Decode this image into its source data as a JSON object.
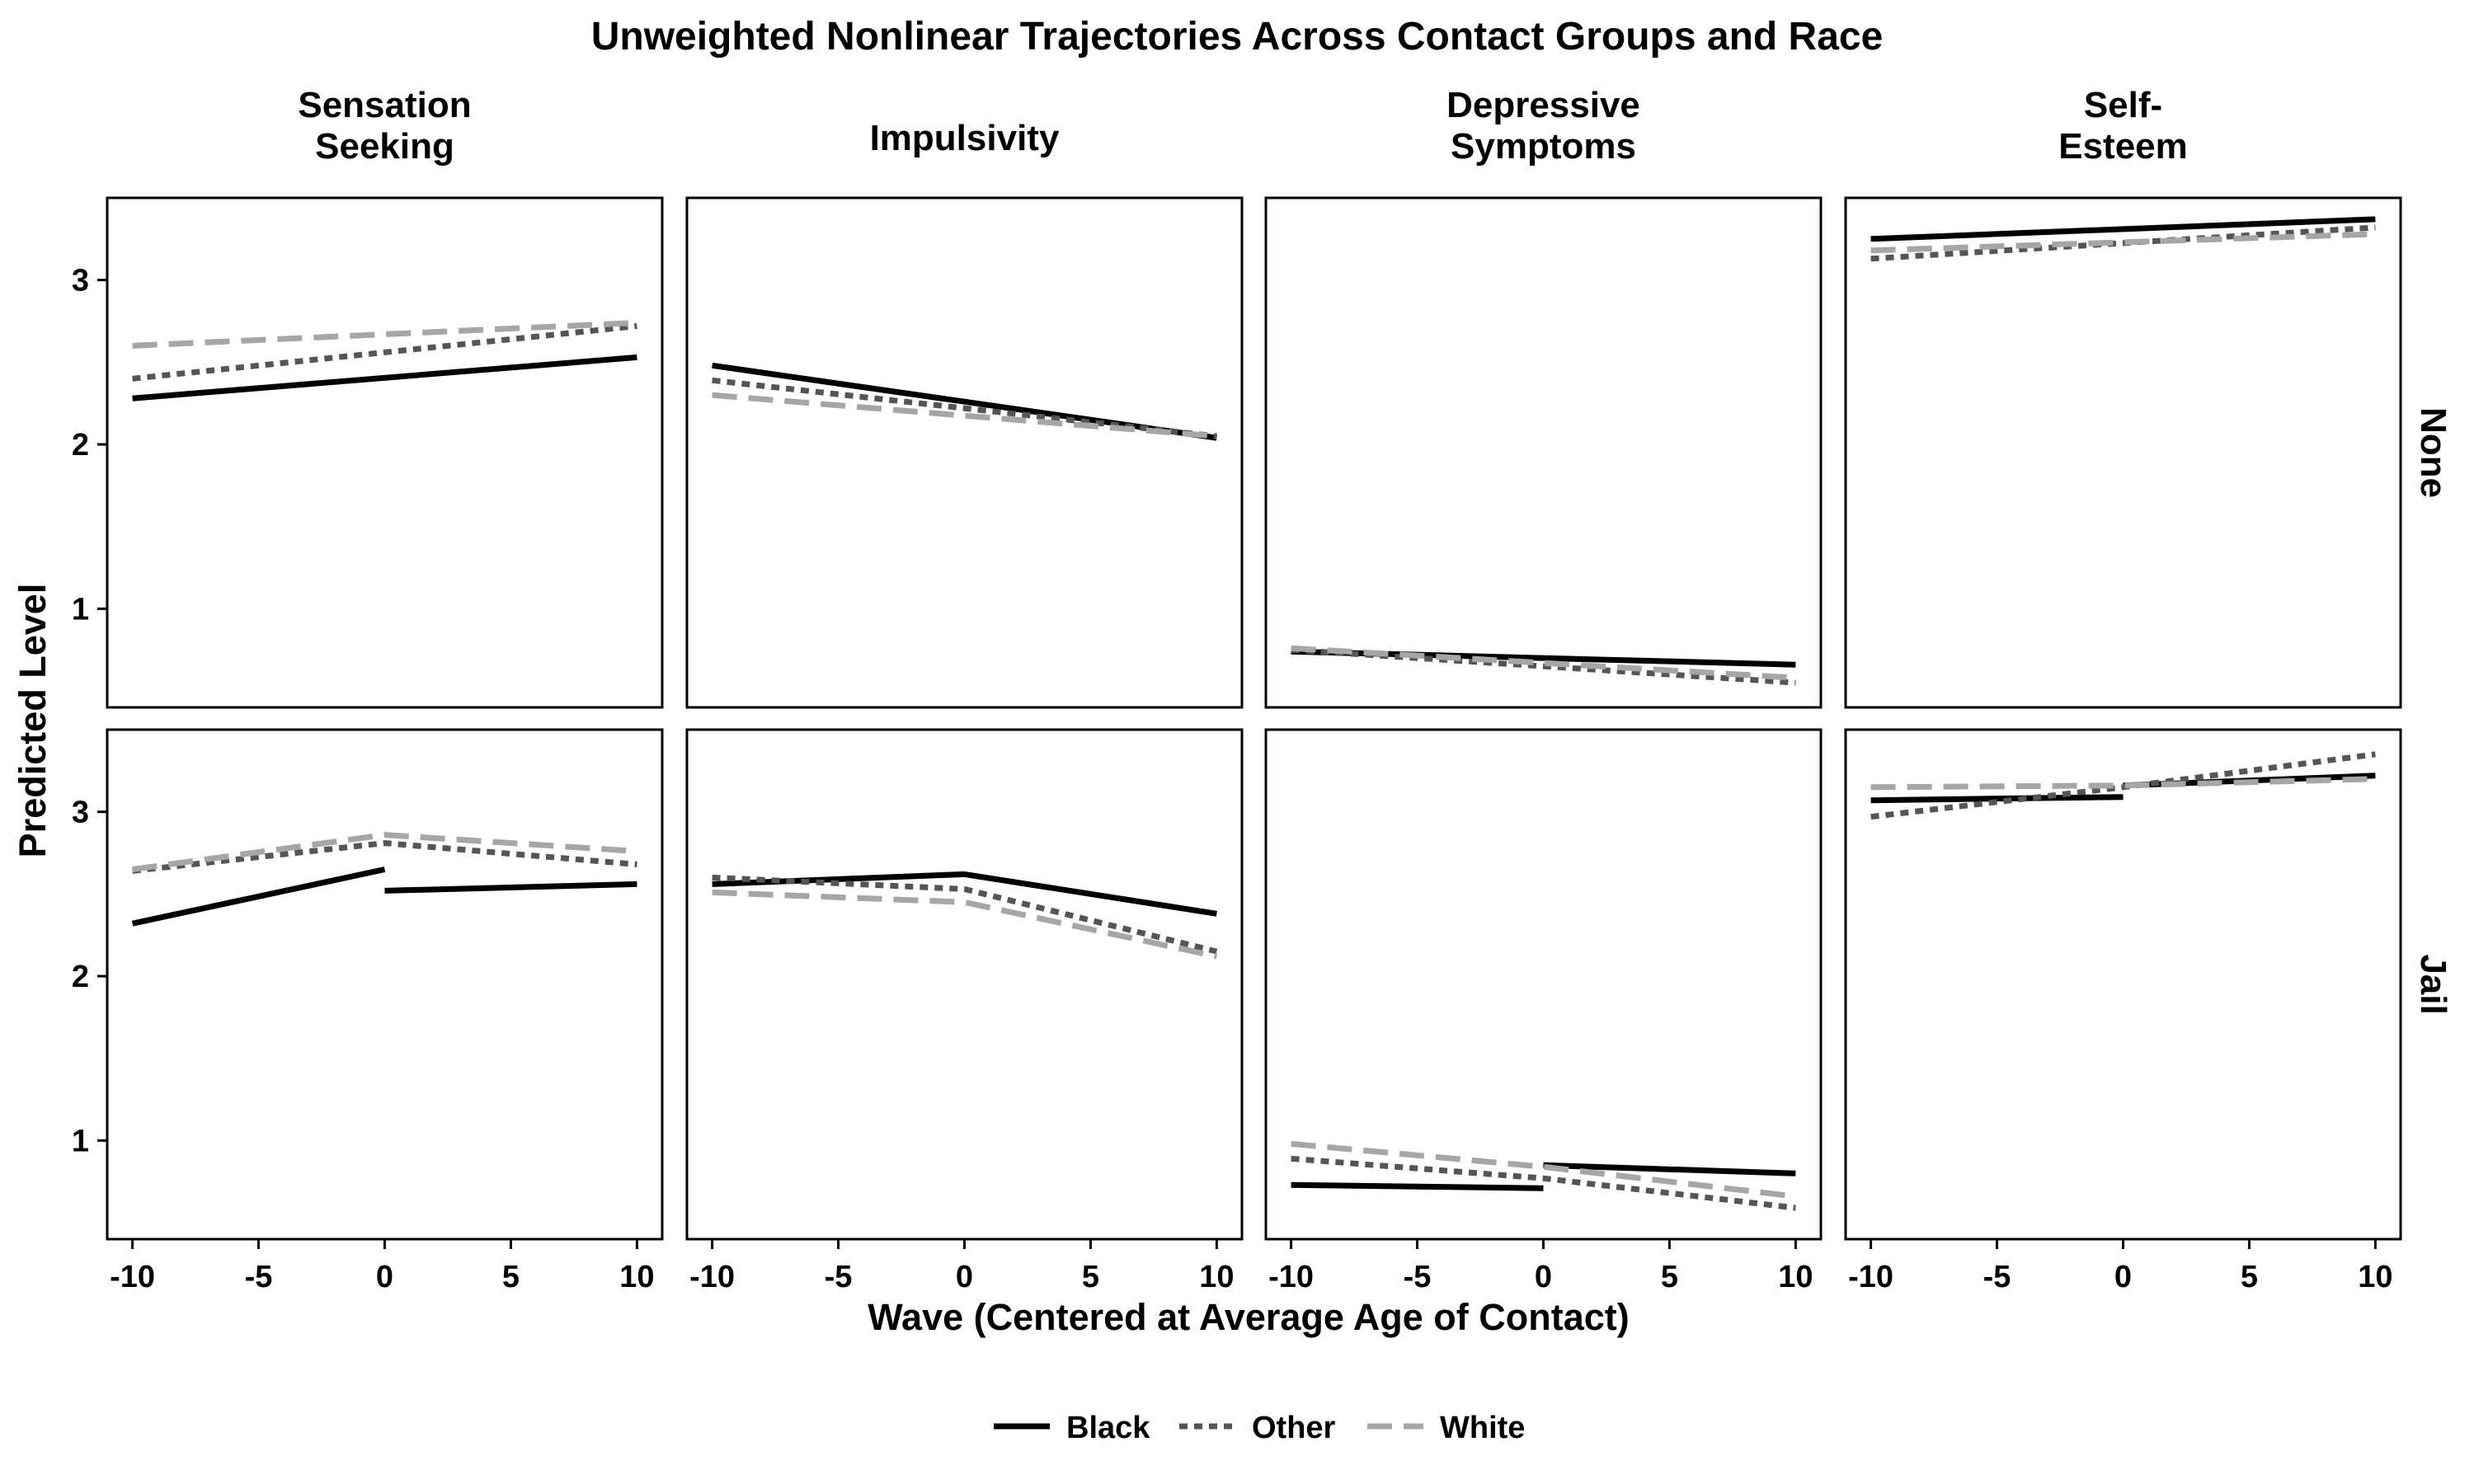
{
  "chart_data": {
    "type": "line",
    "title": "Unweighted Nonlinear Trajectories Across Contact Groups and Race",
    "xlabel": "Wave (Centered at Average Age of Contact)",
    "ylabel": "Predicted Level",
    "xlim": [
      -11.0,
      11.0
    ],
    "ylim": [
      0.4,
      3.5
    ],
    "x_ticks": [
      -10,
      -5,
      0,
      5,
      10
    ],
    "x_tick_labels": [
      "-10",
      "-5",
      "0",
      "5",
      "10"
    ],
    "y_ticks": [
      1,
      2,
      3
    ],
    "y_tick_labels": [
      "1",
      "2",
      "3"
    ],
    "grid": false,
    "legend_position": "bottom",
    "columns": [
      {
        "key": "sensation",
        "label_lines": [
          "Sensation",
          "Seeking"
        ]
      },
      {
        "key": "impulsivity",
        "label_lines": [
          "Impulsivity"
        ]
      },
      {
        "key": "depressive",
        "label_lines": [
          "Depressive",
          "Symptoms"
        ]
      },
      {
        "key": "selfesteem",
        "label_lines": [
          "Self-",
          "Esteem"
        ]
      }
    ],
    "rows": [
      {
        "key": "none",
        "label": "None"
      },
      {
        "key": "jail",
        "label": "Jail"
      }
    ],
    "series_styles": [
      {
        "name": "Black",
        "color": "#000000",
        "dash": "solid"
      },
      {
        "name": "Other",
        "color": "#555555",
        "dash": "dotted"
      },
      {
        "name": "White",
        "color": "#a6a6a6",
        "dash": "dashed"
      }
    ],
    "panels": [
      {
        "row": "none",
        "col": "sensation",
        "series": [
          {
            "name": "Black",
            "segments": [
              [
                [
                  -10,
                  2.28
                ],
                [
                  10,
                  2.53
                ]
              ]
            ]
          },
          {
            "name": "Other",
            "segments": [
              [
                [
                  -10,
                  2.4
                ],
                [
                  10,
                  2.72
                ]
              ]
            ]
          },
          {
            "name": "White",
            "segments": [
              [
                [
                  -10,
                  2.6
                ],
                [
                  10,
                  2.74
                ]
              ]
            ]
          }
        ]
      },
      {
        "row": "none",
        "col": "impulsivity",
        "series": [
          {
            "name": "Black",
            "segments": [
              [
                [
                  -10,
                  2.48
                ],
                [
                  10,
                  2.04
                ]
              ]
            ]
          },
          {
            "name": "Other",
            "segments": [
              [
                [
                  -10,
                  2.39
                ],
                [
                  10,
                  2.05
                ]
              ]
            ]
          },
          {
            "name": "White",
            "segments": [
              [
                [
                  -10,
                  2.3
                ],
                [
                  10,
                  2.05
                ]
              ]
            ]
          }
        ]
      },
      {
        "row": "none",
        "col": "depressive",
        "series": [
          {
            "name": "Black",
            "segments": [
              [
                [
                  -10,
                  0.74
                ],
                [
                  10,
                  0.66
                ]
              ]
            ]
          },
          {
            "name": "Other",
            "segments": [
              [
                [
                  -10,
                  0.75
                ],
                [
                  10,
                  0.55
                ]
              ]
            ]
          },
          {
            "name": "White",
            "segments": [
              [
                [
                  -10,
                  0.76
                ],
                [
                  10,
                  0.58
                ]
              ]
            ]
          }
        ]
      },
      {
        "row": "none",
        "col": "selfesteem",
        "series": [
          {
            "name": "Black",
            "segments": [
              [
                [
                  -10,
                  3.25
                ],
                [
                  10,
                  3.37
                ]
              ]
            ]
          },
          {
            "name": "Other",
            "segments": [
              [
                [
                  -10,
                  3.13
                ],
                [
                  10,
                  3.32
                ]
              ]
            ]
          },
          {
            "name": "White",
            "segments": [
              [
                [
                  -10,
                  3.18
                ],
                [
                  10,
                  3.28
                ]
              ]
            ]
          }
        ]
      },
      {
        "row": "jail",
        "col": "sensation",
        "series": [
          {
            "name": "Black",
            "segments": [
              [
                [
                  -10,
                  2.32
                ],
                [
                  0,
                  2.65
                ]
              ],
              [
                [
                  0,
                  2.52
                ],
                [
                  10,
                  2.56
                ]
              ]
            ]
          },
          {
            "name": "Other",
            "segments": [
              [
                [
                  -10,
                  2.64
                ],
                [
                  0,
                  2.81
                ],
                [
                  10,
                  2.68
                ]
              ]
            ]
          },
          {
            "name": "White",
            "segments": [
              [
                [
                  -10,
                  2.65
                ],
                [
                  0,
                  2.86
                ],
                [
                  10,
                  2.76
                ]
              ]
            ]
          }
        ]
      },
      {
        "row": "jail",
        "col": "impulsivity",
        "series": [
          {
            "name": "Black",
            "segments": [
              [
                [
                  -10,
                  2.56
                ],
                [
                  0,
                  2.62
                ],
                [
                  10,
                  2.38
                ]
              ]
            ]
          },
          {
            "name": "Other",
            "segments": [
              [
                [
                  -10,
                  2.6
                ],
                [
                  0,
                  2.53
                ],
                [
                  10,
                  2.15
                ]
              ]
            ]
          },
          {
            "name": "White",
            "segments": [
              [
                [
                  -10,
                  2.51
                ],
                [
                  0,
                  2.45
                ],
                [
                  10,
                  2.12
                ]
              ]
            ]
          }
        ]
      },
      {
        "row": "jail",
        "col": "depressive",
        "series": [
          {
            "name": "Black",
            "segments": [
              [
                [
                  -10,
                  0.73
                ],
                [
                  0,
                  0.71
                ]
              ],
              [
                [
                  0,
                  0.85
                ],
                [
                  10,
                  0.8
                ]
              ]
            ]
          },
          {
            "name": "Other",
            "segments": [
              [
                [
                  -10,
                  0.89
                ],
                [
                  0,
                  0.77
                ],
                [
                  10,
                  0.59
                ]
              ]
            ]
          },
          {
            "name": "White",
            "segments": [
              [
                [
                  -10,
                  0.98
                ],
                [
                  0,
                  0.84
                ],
                [
                  10,
                  0.66
                ]
              ]
            ]
          }
        ]
      },
      {
        "row": "jail",
        "col": "selfesteem",
        "series": [
          {
            "name": "Black",
            "segments": [
              [
                [
                  -10,
                  3.07
                ],
                [
                  0,
                  3.09
                ]
              ],
              [
                [
                  0,
                  3.16
                ],
                [
                  10,
                  3.22
                ]
              ]
            ]
          },
          {
            "name": "Other",
            "segments": [
              [
                [
                  -10,
                  2.97
                ],
                [
                  0,
                  3.15
                ],
                [
                  10,
                  3.35
                ]
              ]
            ]
          },
          {
            "name": "White",
            "segments": [
              [
                [
                  -10,
                  3.15
                ],
                [
                  0,
                  3.16
                ],
                [
                  10,
                  3.2
                ]
              ]
            ]
          }
        ]
      }
    ]
  }
}
